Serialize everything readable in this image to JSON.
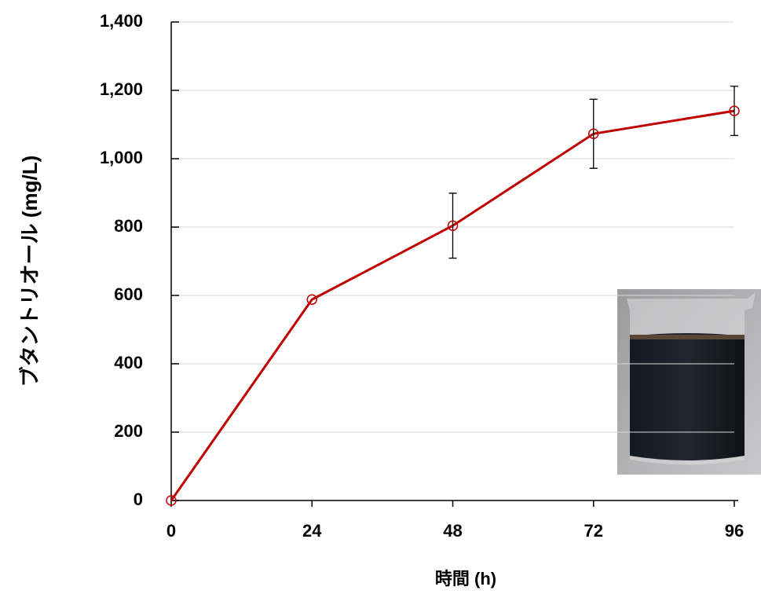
{
  "chart_data": {
    "type": "line",
    "xlabel": "時間 (h)",
    "ylabel": "ブタントリオール (mg/L)",
    "x": [
      0,
      24,
      48,
      72,
      96
    ],
    "series": [
      {
        "color": "#c00000",
        "values": [
          0,
          588,
          804,
          1073,
          1140
        ],
        "errors": [
          null,
          null,
          95,
          101,
          72
        ]
      }
    ],
    "xlim": [
      0,
      96
    ],
    "xticks": [
      0,
      24,
      48,
      72,
      96
    ],
    "ylim": [
      0,
      1400
    ],
    "yticks": [
      0,
      200,
      400,
      600,
      800,
      {
        "value": 1000,
        "label": "1,000"
      },
      {
        "value": 1200,
        "label": "1,200"
      },
      {
        "value": 1400,
        "label": "1,400"
      }
    ],
    "grid": true
  }
}
